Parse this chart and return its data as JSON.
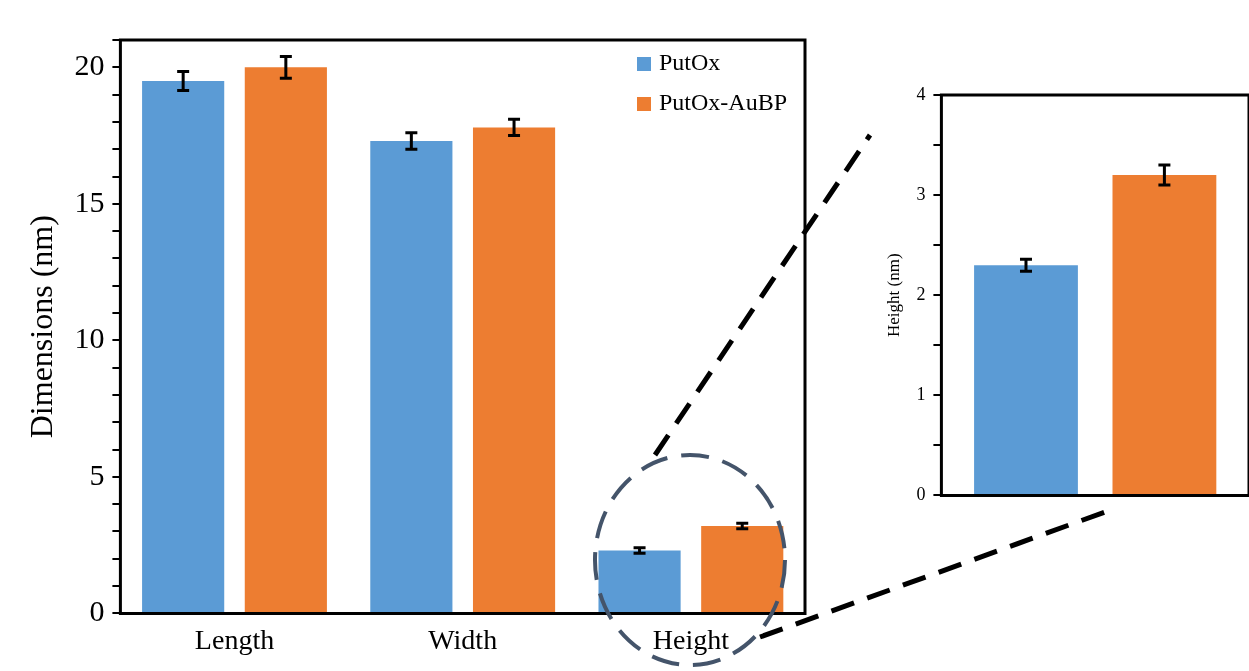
{
  "chart_data": [
    {
      "type": "bar",
      "ylabel": "Dimensions (nm)",
      "categories": [
        "Length",
        "Width",
        "Height"
      ],
      "series": [
        {
          "name": "PutOx",
          "color": "#5b9bd5",
          "values": [
            19.5,
            17.3,
            2.3
          ],
          "errors": [
            0.35,
            0.3,
            0.1
          ]
        },
        {
          "name": "PutOx-AuBP",
          "color": "#ed7d31",
          "values": [
            20.0,
            17.8,
            3.2
          ],
          "errors": [
            0.4,
            0.3,
            0.1
          ]
        }
      ],
      "ylim": [
        0,
        21
      ],
      "yticks": [
        0,
        {
          "value": 1,
          "label": null
        },
        {
          "value": 2,
          "label": null
        },
        {
          "value": 3,
          "label": null
        },
        {
          "value": 4,
          "label": null
        },
        5,
        {
          "value": 6,
          "label": null
        },
        {
          "value": 7,
          "label": null
        },
        {
          "value": 8,
          "label": null
        },
        {
          "value": 9,
          "label": null
        },
        10,
        {
          "value": 11,
          "label": null
        },
        {
          "value": 12,
          "label": null
        },
        {
          "value": 13,
          "label": null
        },
        {
          "value": 14,
          "label": null
        },
        15,
        {
          "value": 16,
          "label": null
        },
        {
          "value": 17,
          "label": null
        },
        {
          "value": 18,
          "label": null
        },
        {
          "value": 19,
          "label": null
        },
        20,
        {
          "value": 21,
          "label": null
        }
      ],
      "grid": false,
      "legend": "top right"
    },
    {
      "type": "bar",
      "ylabel": "Height (nm)",
      "categories": [
        null
      ],
      "series": [
        {
          "color": "#5b9bd5",
          "values": [
            2.3
          ],
          "errors": [
            0.06
          ]
        },
        {
          "color": "#ed7d31",
          "values": [
            3.2
          ],
          "errors": [
            0.1
          ]
        }
      ],
      "ylim": [
        0,
        4
      ],
      "yticks": [
        0,
        {
          "value": 0.5,
          "label": null
        },
        1,
        {
          "value": 1.5,
          "label": null
        },
        2,
        {
          "value": 2.5,
          "label": null
        },
        3,
        {
          "value": 3.5,
          "label": null
        },
        4
      ],
      "grid": false
    }
  ]
}
